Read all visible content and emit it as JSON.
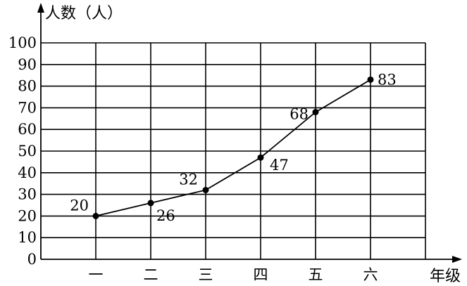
{
  "chart_data": {
    "type": "line",
    "title": "",
    "xlabel": "年级",
    "ylabel": "人数（人）",
    "categories": [
      "一",
      "二",
      "三",
      "四",
      "五",
      "六"
    ],
    "values": [
      20,
      26,
      32,
      47,
      68,
      83
    ],
    "data_labels": [
      "20",
      "26",
      "32",
      "47",
      "68",
      "83"
    ],
    "ylim": [
      0,
      100
    ],
    "y_ticks": [
      "0",
      "10",
      "20",
      "30",
      "40",
      "50",
      "60",
      "70",
      "80",
      "90",
      "100"
    ],
    "grid": true,
    "legend": "none",
    "line_color": "#000000"
  }
}
